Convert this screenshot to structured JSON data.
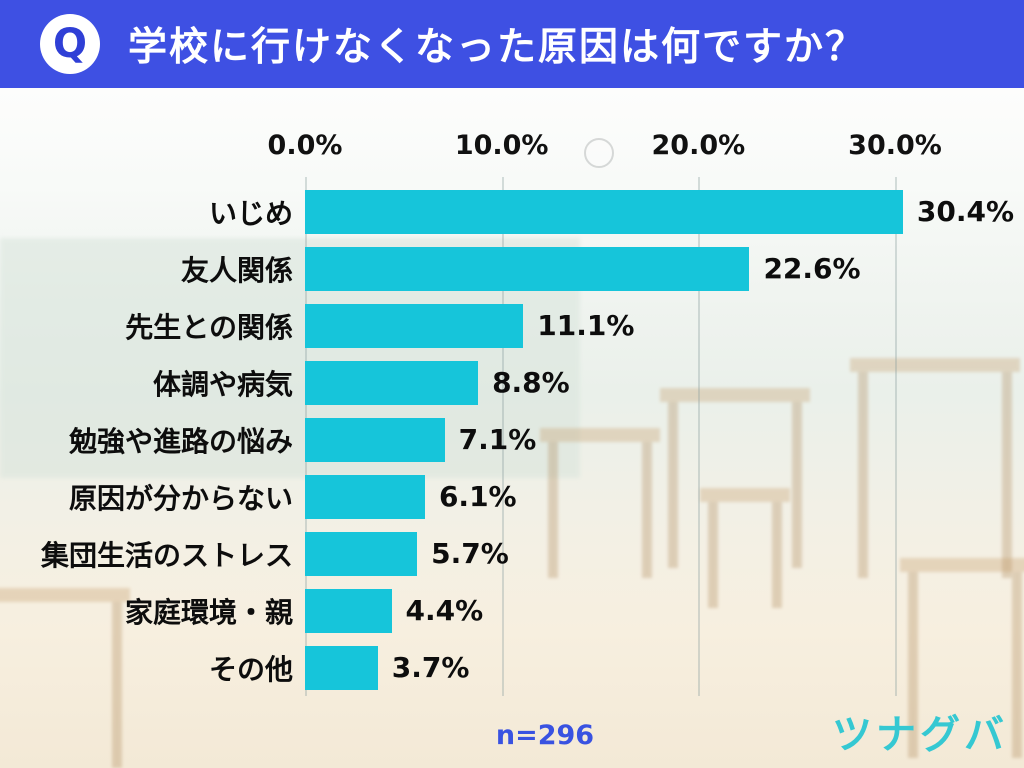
{
  "header": {
    "q_letter": "Q",
    "title": "学校に行けなくなった原因は何ですか？",
    "accent_color": "#3E50E3"
  },
  "chart_data": {
    "type": "bar",
    "orientation": "horizontal",
    "title": "学校に行けなくなった原因は何ですか？",
    "categories": [
      "いじめ",
      "友人関係",
      "先生との関係",
      "体調や病気",
      "勉強や進路の悩み",
      "原因が分からない",
      "集団生活のストレス",
      "家庭環境・親",
      "その他"
    ],
    "values": [
      30.4,
      22.6,
      11.1,
      8.8,
      7.1,
      6.1,
      5.7,
      4.4,
      3.7
    ],
    "value_labels": [
      "30.4%",
      "22.6%",
      "11.1%",
      "8.8%",
      "7.1%",
      "6.1%",
      "5.7%",
      "4.4%",
      "3.7%"
    ],
    "x_tick_labels": [
      "0.0%",
      "10.0%",
      "20.0%",
      "30.0%"
    ],
    "x_tick_values": [
      0,
      10,
      20,
      30
    ],
    "xlim": [
      0,
      30
    ],
    "grid": true,
    "legend": false,
    "bar_color": "#16C5DA",
    "sample_size": "n=296"
  },
  "footer": {
    "sample_label": "n=296",
    "logo_text": "ツナグバ",
    "logo_color": "#35C8D2"
  }
}
